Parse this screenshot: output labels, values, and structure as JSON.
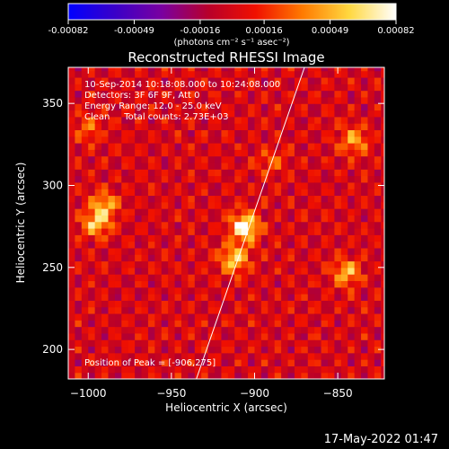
{
  "chart_data": {
    "type": "heatmap",
    "title": "Reconstructed RHESSI Image",
    "xlabel": "Heliocentric X (arcsec)",
    "ylabel": "Heliocentric Y (arcsec)",
    "xlim": [
      -1012,
      -822
    ],
    "ylim": [
      182,
      372
    ],
    "x_ticks": [
      -1000,
      -950,
      -900,
      -850
    ],
    "y_ticks": [
      200,
      250,
      300,
      350
    ],
    "colorbar": {
      "ticks": [
        -0.00082,
        -0.00049,
        -0.00016,
        0.00016,
        0.00049,
        0.00082
      ],
      "tick_labels": [
        "-0.00082",
        "-0.00049",
        "-0.00016",
        "0.00016",
        "0.00049",
        "0.00082"
      ],
      "units": "(photons cm⁻² s⁻¹ asec⁻²)",
      "colormap": [
        "#0000ff",
        "#3a00c8",
        "#7a00a0",
        "#b8002a",
        "#f01000",
        "#ff7a00",
        "#ffd840",
        "#ffffff"
      ]
    },
    "annotations": [
      "10-Sep-2014 10:18:08.000 to 10:24:08.000",
      "Detectors: 3F 6F 9F, Att 0",
      "Energy Range: 12.0 - 25.0 keV",
      "Clean     Total counts: 2.73E+03"
    ],
    "peak_label": "Position of Peak = [-906,275]",
    "peak": {
      "x": -906,
      "y": 275
    },
    "sources": [
      {
        "x": -906,
        "y": 275,
        "intensity": 0.00082
      },
      {
        "x": -912,
        "y": 255,
        "intensity": 0.0006
      },
      {
        "x": -995,
        "y": 277,
        "intensity": 0.00055
      },
      {
        "x": -990,
        "y": 288,
        "intensity": 0.00048
      },
      {
        "x": -845,
        "y": 247,
        "intensity": 0.00052
      },
      {
        "x": -840,
        "y": 328,
        "intensity": 0.00045
      },
      {
        "x": -1000,
        "y": 335,
        "intensity": 0.0003
      },
      {
        "x": -890,
        "y": 315,
        "intensity": 0.00025
      }
    ],
    "limb_line": {
      "x": [
        -935,
        -870
      ],
      "y": [
        182,
        372
      ]
    },
    "grid": false
  },
  "timestamp": "17-May-2022 01:47"
}
